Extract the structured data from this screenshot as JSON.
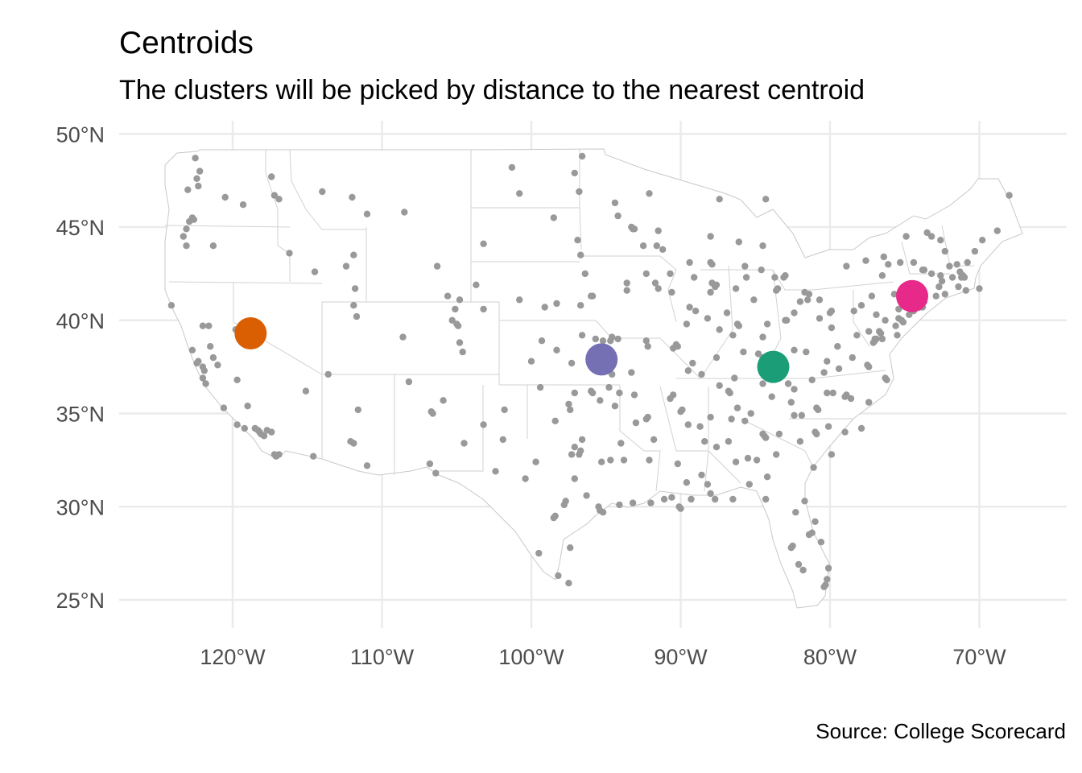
{
  "title": "Centroids",
  "subtitle": "The clusters will be picked by distance to the nearest centroid",
  "caption": "Source: College Scorecard",
  "colors": {
    "points": "#999999",
    "grid": "#ebebeb",
    "state_fill": "#ffffff",
    "state_border": "#c8c8c8",
    "axis_text": "#4d4d4d"
  },
  "chart_data": {
    "type": "scatter",
    "title": "Centroids",
    "subtitle": "The clusters will be picked by distance to the nearest centroid",
    "xlabel": "",
    "ylabel": "",
    "xlim": [
      -127.7,
      -64.9
    ],
    "ylim": [
      23.2,
      50.5
    ],
    "grid": true,
    "x_ticks": [
      -120,
      -110,
      -100,
      -90,
      -80,
      -70
    ],
    "x_tick_labels": [
      "120°W",
      "110°W",
      "100°W",
      "90°W",
      "80°W",
      "70°W"
    ],
    "y_ticks": [
      25,
      30,
      35,
      40,
      45,
      50
    ],
    "y_tick_labels": [
      "25°N",
      "30°N",
      "35°N",
      "40°N",
      "45°N",
      "50°N"
    ],
    "centroids": [
      {
        "lon": -118.8,
        "lat": 39.3,
        "color": "#d95f02"
      },
      {
        "lon": -95.3,
        "lat": 37.9,
        "color": "#7570b3"
      },
      {
        "lon": -83.8,
        "lat": 37.5,
        "color": "#1b9e77"
      },
      {
        "lon": -74.5,
        "lat": 41.3,
        "color": "#e7298a"
      }
    ],
    "colleges": [
      [
        -122.4,
        47.6
      ],
      [
        -122.3,
        47.2
      ],
      [
        -123.0,
        47.0
      ],
      [
        -122.7,
        45.5
      ],
      [
        -122.6,
        45.4
      ],
      [
        -122.9,
        45.3
      ],
      [
        -123.1,
        44.9
      ],
      [
        -123.3,
        44.5
      ],
      [
        -123.1,
        44.0
      ],
      [
        -121.3,
        44.0
      ],
      [
        -117.4,
        47.7
      ],
      [
        -117.2,
        46.7
      ],
      [
        -119.3,
        46.2
      ],
      [
        -120.5,
        46.6
      ],
      [
        -122.5,
        48.7
      ],
      [
        -122.2,
        48.0
      ],
      [
        -116.9,
        46.5
      ],
      [
        -116.2,
        43.6
      ],
      [
        -114.5,
        42.6
      ],
      [
        -112.4,
        42.9
      ],
      [
        -111.9,
        43.5
      ],
      [
        -114.0,
        46.9
      ],
      [
        -112.0,
        46.6
      ],
      [
        -111.0,
        45.7
      ],
      [
        -108.5,
        45.8
      ],
      [
        -104.8,
        41.1
      ],
      [
        -105.6,
        41.3
      ],
      [
        -106.3,
        42.9
      ],
      [
        -111.9,
        40.8
      ],
      [
        -111.7,
        40.2
      ],
      [
        -111.8,
        41.7
      ],
      [
        -113.6,
        37.1
      ],
      [
        -112.1,
        33.5
      ],
      [
        -111.9,
        33.4
      ],
      [
        -111.0,
        32.2
      ],
      [
        -111.6,
        35.2
      ],
      [
        -114.6,
        32.7
      ],
      [
        -115.1,
        36.2
      ],
      [
        -119.8,
        39.5
      ],
      [
        -119.7,
        36.8
      ],
      [
        -121.5,
        38.6
      ],
      [
        -121.9,
        37.3
      ],
      [
        -122.3,
        37.8
      ],
      [
        -122.4,
        37.7
      ],
      [
        -122.0,
        37.5
      ],
      [
        -122.7,
        38.4
      ],
      [
        -121.3,
        38.0
      ],
      [
        -120.6,
        35.3
      ],
      [
        -119.7,
        34.4
      ],
      [
        -118.3,
        34.1
      ],
      [
        -118.2,
        34.0
      ],
      [
        -117.9,
        33.8
      ],
      [
        -118.1,
        33.9
      ],
      [
        -117.4,
        34.0
      ],
      [
        -117.2,
        32.8
      ],
      [
        -117.1,
        32.7
      ],
      [
        -116.9,
        32.8
      ],
      [
        -117.7,
        34.1
      ],
      [
        -118.5,
        34.2
      ],
      [
        -119.2,
        34.2
      ],
      [
        -124.1,
        40.8
      ],
      [
        -122.0,
        39.7
      ],
      [
        -121.6,
        39.7
      ],
      [
        -122.0,
        36.9
      ],
      [
        -121.8,
        36.6
      ],
      [
        -119.0,
        35.4
      ],
      [
        -121.0,
        37.6
      ],
      [
        -108.6,
        39.1
      ],
      [
        -104.8,
        38.8
      ],
      [
        -104.9,
        39.7
      ],
      [
        -105.0,
        39.8
      ],
      [
        -105.1,
        40.6
      ],
      [
        -105.3,
        40.0
      ],
      [
        -104.6,
        38.3
      ],
      [
        -103.2,
        40.6
      ],
      [
        -106.7,
        35.1
      ],
      [
        -106.6,
        35.0
      ],
      [
        -105.9,
        35.7
      ],
      [
        -106.8,
        32.3
      ],
      [
        -104.5,
        33.4
      ],
      [
        -108.2,
        36.7
      ],
      [
        -103.2,
        34.4
      ],
      [
        -101.8,
        35.2
      ],
      [
        -101.9,
        33.6
      ],
      [
        -102.4,
        31.9
      ],
      [
        -106.4,
        31.8
      ],
      [
        -100.4,
        31.5
      ],
      [
        -99.7,
        32.4
      ],
      [
        -97.3,
        32.8
      ],
      [
        -96.8,
        32.8
      ],
      [
        -96.7,
        33.0
      ],
      [
        -97.1,
        33.2
      ],
      [
        -97.7,
        30.3
      ],
      [
        -97.8,
        30.1
      ],
      [
        -98.5,
        29.4
      ],
      [
        -98.4,
        29.5
      ],
      [
        -95.4,
        29.8
      ],
      [
        -95.2,
        29.7
      ],
      [
        -95.5,
        30.0
      ],
      [
        -94.1,
        30.1
      ],
      [
        -96.3,
        30.6
      ],
      [
        -97.4,
        27.8
      ],
      [
        -97.5,
        25.9
      ],
      [
        -98.2,
        26.3
      ],
      [
        -99.5,
        27.5
      ],
      [
        -97.1,
        31.5
      ],
      [
        -94.7,
        32.5
      ],
      [
        -95.3,
        32.4
      ],
      [
        -94.0,
        33.4
      ],
      [
        -96.6,
        33.6
      ],
      [
        -97.4,
        35.2
      ],
      [
        -97.5,
        35.5
      ],
      [
        -95.9,
        36.1
      ],
      [
        -96.0,
        36.2
      ],
      [
        -95.4,
        35.7
      ],
      [
        -98.4,
        34.6
      ],
      [
        -99.4,
        36.4
      ],
      [
        -97.1,
        36.1
      ],
      [
        -97.3,
        37.7
      ],
      [
        -95.7,
        39.0
      ],
      [
        -94.6,
        39.1
      ],
      [
        -94.7,
        38.9
      ],
      [
        -96.6,
        39.2
      ],
      [
        -98.3,
        38.4
      ],
      [
        -99.3,
        38.9
      ],
      [
        -100.0,
        37.8
      ],
      [
        -95.2,
        38.9
      ],
      [
        -96.7,
        40.8
      ],
      [
        -96.0,
        41.3
      ],
      [
        -98.3,
        40.9
      ],
      [
        -99.1,
        40.7
      ],
      [
        -100.8,
        41.1
      ],
      [
        -103.7,
        41.9
      ],
      [
        -103.2,
        44.1
      ],
      [
        -96.7,
        43.5
      ],
      [
        -96.9,
        44.3
      ],
      [
        -98.5,
        45.5
      ],
      [
        -100.8,
        46.8
      ],
      [
        -96.8,
        46.9
      ],
      [
        -97.1,
        47.9
      ],
      [
        -101.3,
        48.2
      ],
      [
        -96.6,
        48.8
      ],
      [
        -93.3,
        45.0
      ],
      [
        -93.1,
        44.9
      ],
      [
        -93.2,
        44.9
      ],
      [
        -92.1,
        46.8
      ],
      [
        -94.4,
        46.3
      ],
      [
        -94.2,
        45.6
      ],
      [
        -92.5,
        44.0
      ],
      [
        -91.6,
        44.0
      ],
      [
        -93.6,
        41.6
      ],
      [
        -91.5,
        41.7
      ],
      [
        -91.7,
        42.0
      ],
      [
        -90.7,
        42.5
      ],
      [
        -92.3,
        42.5
      ],
      [
        -95.9,
        41.3
      ],
      [
        -96.4,
        42.5
      ],
      [
        -93.6,
        42.0
      ],
      [
        -94.2,
        39.0
      ],
      [
        -94.6,
        37.1
      ],
      [
        -93.3,
        37.2
      ],
      [
        -92.3,
        38.9
      ],
      [
        -90.2,
        38.6
      ],
      [
        -90.3,
        38.7
      ],
      [
        -90.5,
        38.5
      ],
      [
        -92.2,
        38.6
      ],
      [
        -89.5,
        37.3
      ],
      [
        -94.1,
        36.1
      ],
      [
        -92.3,
        34.7
      ],
      [
        -92.2,
        34.8
      ],
      [
        -94.4,
        35.4
      ],
      [
        -90.7,
        35.8
      ],
      [
        -91.8,
        33.6
      ],
      [
        -93.0,
        34.5
      ],
      [
        -93.8,
        32.5
      ],
      [
        -92.1,
        32.5
      ],
      [
        -91.1,
        30.4
      ],
      [
        -90.1,
        30.0
      ],
      [
        -90.0,
        29.9
      ],
      [
        -92.0,
        30.2
      ],
      [
        -93.2,
        30.2
      ],
      [
        -90.6,
        30.5
      ],
      [
        -89.6,
        31.3
      ],
      [
        -90.2,
        32.3
      ],
      [
        -88.7,
        34.3
      ],
      [
        -89.5,
        34.4
      ],
      [
        -88.4,
        33.5
      ],
      [
        -88.0,
        30.7
      ],
      [
        -86.8,
        33.5
      ],
      [
        -86.6,
        34.7
      ],
      [
        -87.6,
        33.2
      ],
      [
        -86.3,
        32.4
      ],
      [
        -85.5,
        32.6
      ],
      [
        -85.4,
        31.2
      ],
      [
        -88.0,
        34.8
      ],
      [
        -87.7,
        30.4
      ],
      [
        -86.5,
        30.4
      ],
      [
        -84.3,
        30.4
      ],
      [
        -82.3,
        29.7
      ],
      [
        -81.7,
        30.3
      ],
      [
        -81.4,
        28.5
      ],
      [
        -81.2,
        28.6
      ],
      [
        -82.5,
        27.9
      ],
      [
        -82.6,
        27.8
      ],
      [
        -81.8,
        26.6
      ],
      [
        -80.1,
        26.7
      ],
      [
        -80.2,
        26.1
      ],
      [
        -80.3,
        25.8
      ],
      [
        -80.4,
        25.7
      ],
      [
        -81.0,
        29.2
      ],
      [
        -80.6,
        28.1
      ],
      [
        -82.1,
        26.9
      ],
      [
        -84.4,
        33.8
      ],
      [
        -84.3,
        33.7
      ],
      [
        -84.5,
        33.9
      ],
      [
        -83.4,
        33.9
      ],
      [
        -81.1,
        32.1
      ],
      [
        -83.6,
        32.8
      ],
      [
        -84.9,
        32.5
      ],
      [
        -82.0,
        33.5
      ],
      [
        -84.2,
        31.6
      ],
      [
        -81.0,
        34.0
      ],
      [
        -80.9,
        33.9
      ],
      [
        -79.9,
        32.8
      ],
      [
        -82.4,
        34.9
      ],
      [
        -81.9,
        34.9
      ],
      [
        -79.0,
        34.0
      ],
      [
        -80.8,
        35.2
      ],
      [
        -80.9,
        35.3
      ],
      [
        -78.6,
        35.8
      ],
      [
        -78.9,
        36.0
      ],
      [
        -79.0,
        35.9
      ],
      [
        -79.8,
        36.1
      ],
      [
        -80.2,
        36.1
      ],
      [
        -82.6,
        35.6
      ],
      [
        -77.9,
        34.2
      ],
      [
        -77.4,
        35.6
      ],
      [
        -76.3,
        36.9
      ],
      [
        -76.2,
        36.8
      ],
      [
        -77.4,
        37.5
      ],
      [
        -77.5,
        37.6
      ],
      [
        -78.5,
        38.0
      ],
      [
        -79.4,
        37.4
      ],
      [
        -80.4,
        37.2
      ],
      [
        -77.0,
        38.9
      ],
      [
        -77.1,
        38.8
      ],
      [
        -77.0,
        39.0
      ],
      [
        -76.6,
        39.3
      ],
      [
        -76.7,
        39.4
      ],
      [
        -77.4,
        39.4
      ],
      [
        -75.5,
        39.2
      ],
      [
        -75.6,
        39.7
      ],
      [
        -75.2,
        40.0
      ],
      [
        -75.1,
        39.9
      ],
      [
        -75.4,
        40.1
      ],
      [
        -76.3,
        40.0
      ],
      [
        -76.9,
        40.3
      ],
      [
        -77.9,
        40.8
      ],
      [
        -80.0,
        40.4
      ],
      [
        -79.9,
        40.5
      ],
      [
        -78.4,
        40.5
      ],
      [
        -75.7,
        41.4
      ],
      [
        -75.4,
        40.6
      ],
      [
        -74.2,
        40.7
      ],
      [
        -74.0,
        40.7
      ],
      [
        -73.9,
        40.8
      ],
      [
        -73.8,
        40.7
      ],
      [
        -74.4,
        40.5
      ],
      [
        -74.7,
        40.3
      ],
      [
        -74.1,
        40.9
      ],
      [
        -73.7,
        41.0
      ],
      [
        -72.9,
        41.3
      ],
      [
        -72.7,
        41.8
      ],
      [
        -72.3,
        41.4
      ],
      [
        -71.4,
        41.8
      ],
      [
        -71.1,
        42.4
      ],
      [
        -71.0,
        42.3
      ],
      [
        -71.2,
        42.3
      ],
      [
        -71.8,
        42.3
      ],
      [
        -72.5,
        42.1
      ],
      [
        -72.6,
        42.4
      ],
      [
        -73.2,
        42.5
      ],
      [
        -73.8,
        42.7
      ],
      [
        -73.7,
        42.7
      ],
      [
        -76.1,
        43.0
      ],
      [
        -76.5,
        42.4
      ],
      [
        -77.6,
        43.2
      ],
      [
        -78.9,
        42.9
      ],
      [
        -73.5,
        44.7
      ],
      [
        -73.2,
        44.5
      ],
      [
        -72.6,
        44.3
      ],
      [
        -71.5,
        43.0
      ],
      [
        -70.8,
        43.1
      ],
      [
        -70.3,
        43.7
      ],
      [
        -69.8,
        44.3
      ],
      [
        -68.8,
        44.8
      ],
      [
        -68.0,
        46.7
      ],
      [
        -72.3,
        43.7
      ],
      [
        -81.7,
        41.5
      ],
      [
        -81.5,
        41.1
      ],
      [
        -82.9,
        40.0
      ],
      [
        -83.0,
        40.0
      ],
      [
        -84.5,
        39.1
      ],
      [
        -84.2,
        39.8
      ],
      [
        -83.5,
        41.7
      ],
      [
        -83.6,
        41.6
      ],
      [
        -80.7,
        41.1
      ],
      [
        -81.4,
        41.4
      ],
      [
        -82.0,
        41.0
      ],
      [
        -82.4,
        40.4
      ],
      [
        -83.1,
        42.3
      ],
      [
        -83.0,
        42.4
      ],
      [
        -83.7,
        42.3
      ],
      [
        -84.6,
        42.7
      ],
      [
        -85.7,
        42.9
      ],
      [
        -85.6,
        42.3
      ],
      [
        -86.1,
        44.2
      ],
      [
        -84.5,
        44.0
      ],
      [
        -87.4,
        46.5
      ],
      [
        -84.3,
        46.5
      ],
      [
        -86.2,
        39.8
      ],
      [
        -86.1,
        39.7
      ],
      [
        -86.5,
        39.2
      ],
      [
        -86.9,
        40.4
      ],
      [
        -85.1,
        41.1
      ],
      [
        -86.3,
        41.7
      ],
      [
        -87.6,
        38.0
      ],
      [
        -87.4,
        39.5
      ],
      [
        -87.6,
        41.9
      ],
      [
        -87.7,
        41.8
      ],
      [
        -87.9,
        42.0
      ],
      [
        -88.0,
        41.5
      ],
      [
        -89.6,
        39.8
      ],
      [
        -89.0,
        40.5
      ],
      [
        -88.2,
        40.1
      ],
      [
        -89.4,
        40.7
      ],
      [
        -90.6,
        41.5
      ],
      [
        -89.1,
        42.3
      ],
      [
        -89.2,
        37.7
      ],
      [
        -87.9,
        43.0
      ],
      [
        -88.0,
        43.1
      ],
      [
        -89.4,
        43.1
      ],
      [
        -88.0,
        44.5
      ],
      [
        -91.2,
        43.8
      ],
      [
        -91.5,
        44.8
      ],
      [
        -85.8,
        38.3
      ],
      [
        -84.5,
        38.0
      ],
      [
        -84.3,
        37.6
      ],
      [
        -86.4,
        36.9
      ],
      [
        -88.6,
        37.1
      ],
      [
        -86.8,
        36.2
      ],
      [
        -86.7,
        36.1
      ],
      [
        -85.3,
        35.0
      ],
      [
        -83.9,
        35.9
      ],
      [
        -90.0,
        35.1
      ],
      [
        -89.9,
        35.2
      ],
      [
        -82.4,
        36.3
      ],
      [
        -87.4,
        36.5
      ],
      [
        -84.5,
        36.6
      ],
      [
        -81.6,
        38.3
      ],
      [
        -79.9,
        39.6
      ],
      [
        -80.7,
        40.1
      ],
      [
        -82.4,
        38.4
      ],
      [
        -80.2,
        37.8
      ],
      [
        -88.6,
        31.7
      ],
      [
        -89.3,
        30.4
      ],
      [
        -85.7,
        34.6
      ],
      [
        -83.2,
        37.3
      ],
      [
        -82.8,
        36.6
      ],
      [
        -81.2,
        36.8
      ],
      [
        -79.5,
        38.6
      ],
      [
        -78.2,
        39.2
      ],
      [
        -74.4,
        43.1
      ],
      [
        -75.3,
        43.1
      ],
      [
        -74.9,
        44.5
      ],
      [
        -76.4,
        43.4
      ],
      [
        -70.0,
        41.7
      ],
      [
        -70.9,
        41.6
      ],
      [
        -71.3,
        42.6
      ],
      [
        -72.0,
        42.9
      ],
      [
        -77.2,
        41.3
      ],
      [
        -76.9,
        39.0
      ],
      [
        -80.1,
        34.3
      ],
      [
        -76.5,
        39.0
      ],
      [
        -88.2,
        31.2
      ],
      [
        -84.8,
        38.2
      ],
      [
        -86.2,
        35.3
      ],
      [
        -90.5,
        36.0
      ],
      [
        -93.1,
        36.0
      ],
      [
        -94.8,
        36.4
      ]
    ]
  }
}
